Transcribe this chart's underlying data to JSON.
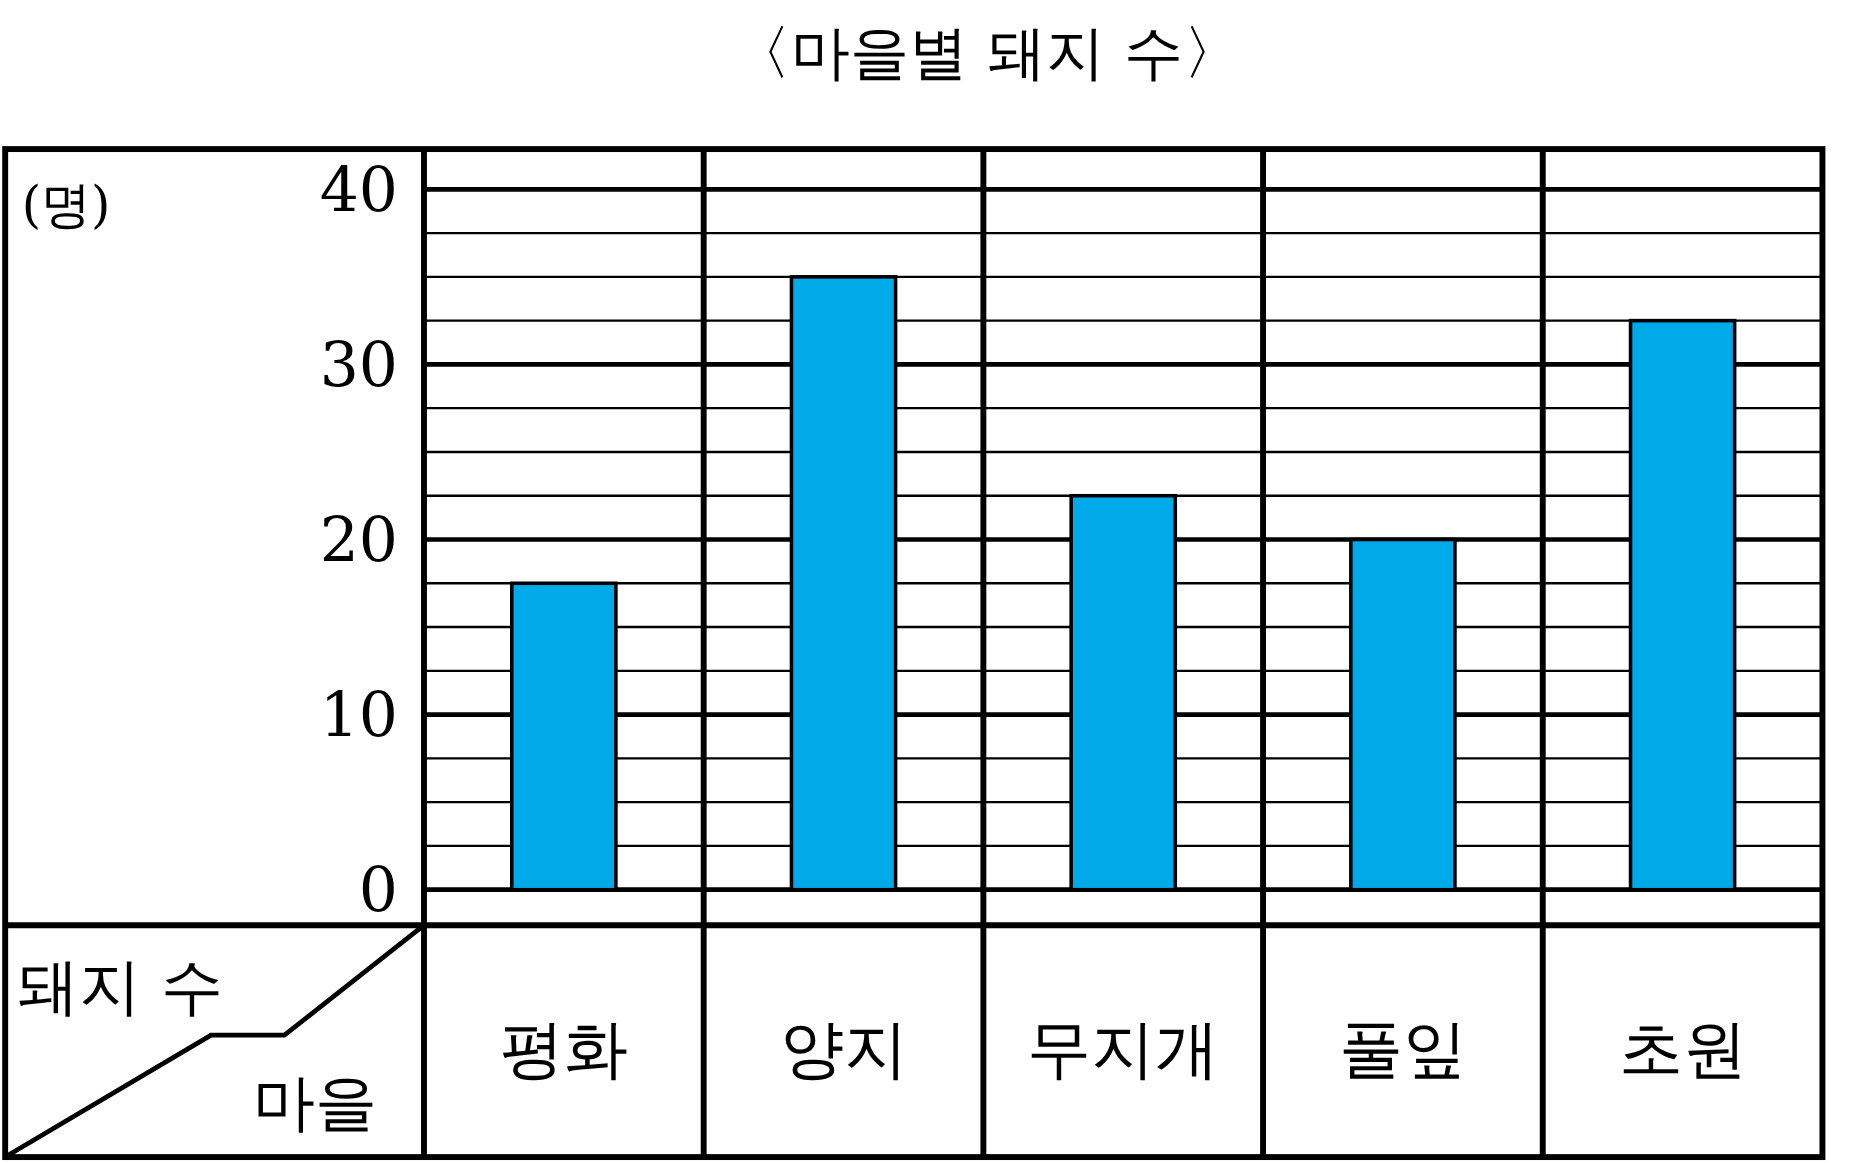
{
  "chart_data": {
    "type": "bar",
    "title": "〈마을별 돼지 수〉",
    "ylabel": "돼지 수",
    "xlabel": "마을",
    "annotations": [
      "(명)"
    ],
    "categories": [
      "평화",
      "양지",
      "무지개",
      "풀잎",
      "초원"
    ],
    "values": [
      17.5,
      35,
      22.5,
      20,
      32.5
    ],
    "color": "#00a9e8",
    "ylim": [
      0,
      40
    ],
    "yticks": [
      0,
      {
        "value": 2.5,
        "label": null
      },
      {
        "value": 5,
        "label": null
      },
      {
        "value": 7.5,
        "label": null
      },
      10,
      {
        "value": 12.5,
        "label": null
      },
      {
        "value": 15,
        "label": null
      },
      {
        "value": 17.5,
        "label": null
      },
      20,
      {
        "value": 22.5,
        "label": null
      },
      {
        "value": 25,
        "label": null
      },
      {
        "value": 27.5,
        "label": null
      },
      30,
      {
        "value": 32.5,
        "label": null
      },
      {
        "value": 35,
        "label": null
      },
      {
        "value": 37.5,
        "label": null
      },
      40
    ],
    "grid": "y"
  }
}
